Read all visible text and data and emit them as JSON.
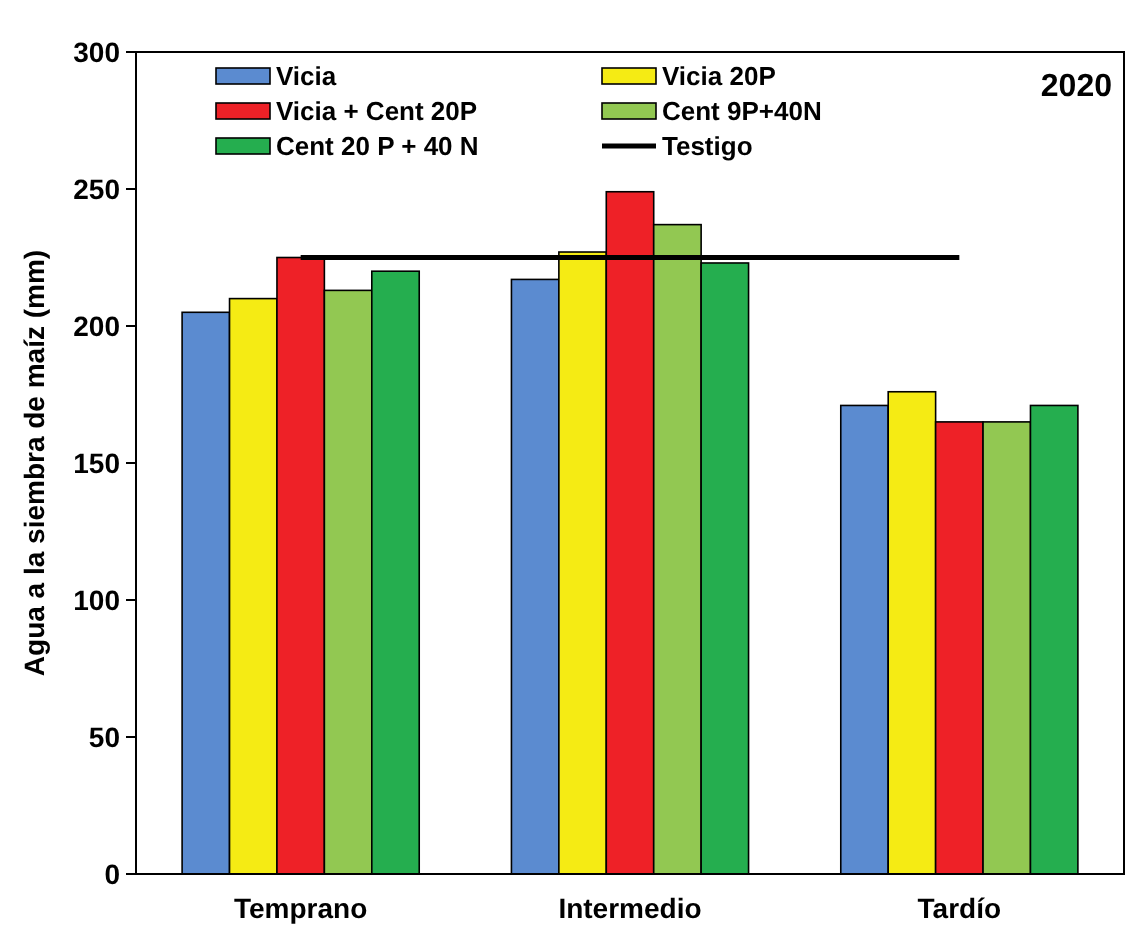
{
  "chart_data": {
    "type": "bar",
    "ylabel": "Agua a la siembra de maíz (mm)",
    "annotations": [
      "2020"
    ],
    "categories": [
      "Temprano",
      "Intermedio",
      "Tardío"
    ],
    "series": [
      {
        "name": "Vicia",
        "color": "#5b8bd0",
        "values": [
          205,
          217,
          171
        ]
      },
      {
        "name": "Vicia 20P",
        "color": "#f5eb14",
        "values": [
          210,
          227,
          176
        ]
      },
      {
        "name": "Vicia + Cent 20P",
        "color": "#ee2127",
        "values": [
          225,
          249,
          165
        ]
      },
      {
        "name": "Cent 9P+40N",
        "color": "#92c852",
        "values": [
          213,
          237,
          165
        ]
      },
      {
        "name": "Cent 20 P + 40 N",
        "color": "#25ae4f",
        "values": [
          220,
          223,
          171
        ]
      },
      {
        "name": "Testigo",
        "color": "#000000",
        "type": "line",
        "values": [
          225,
          225,
          225
        ]
      }
    ],
    "ylim": [
      0,
      300
    ],
    "yticks": [
      0,
      50,
      100,
      150,
      200,
      250,
      300
    ],
    "grid": false,
    "legend": "top left"
  }
}
